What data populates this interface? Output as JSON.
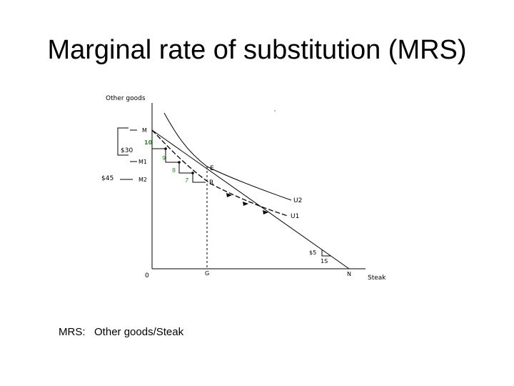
{
  "title": "Marginal rate of substitution (MRS)",
  "diagram": {
    "y_axis_label": "Other goods",
    "x_axis_label": "Steak",
    "origin_label": "0",
    "points": {
      "M": "M",
      "M1": "M1",
      "M2": "M2",
      "E": "E",
      "R": "R",
      "G": "G",
      "N": "N"
    },
    "bracket_30": "$30",
    "bracket_45": "$45",
    "step_labels": [
      "10",
      "9",
      "8",
      "7"
    ],
    "slope_price": "$5",
    "slope_unit": "1S",
    "curves": [
      "U2",
      "U1"
    ],
    "colors": {
      "green": "#2e8b2e",
      "black": "#000000"
    }
  },
  "caption": {
    "prefix": "MRS:",
    "text": "Other goods/Steak"
  }
}
